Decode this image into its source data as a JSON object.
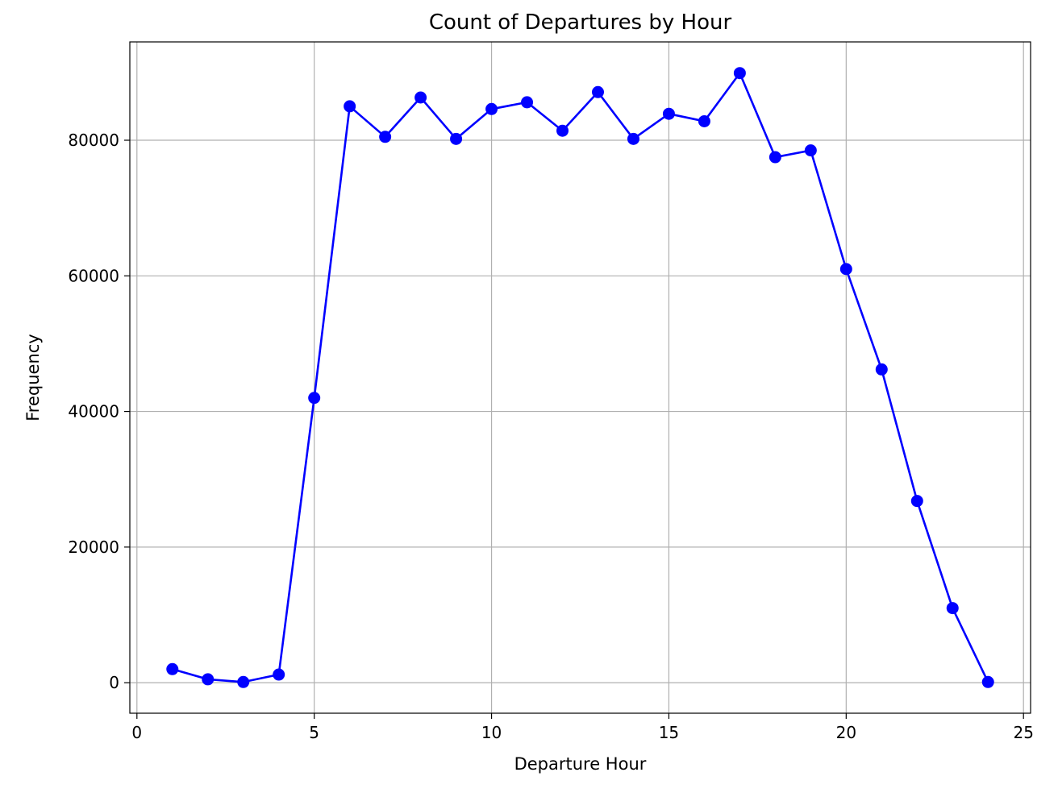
{
  "chart_data": {
    "type": "line",
    "title": "Count of Departures by Hour",
    "xlabel": "Departure Hour",
    "ylabel": "Frequency",
    "xlim": [
      -0.2,
      25.2
    ],
    "ylim": [
      -4500,
      94500
    ],
    "xticks": [
      0,
      5,
      10,
      15,
      20,
      25
    ],
    "yticks": [
      0,
      20000,
      40000,
      60000,
      80000
    ],
    "grid": true,
    "color": "#0000ff",
    "marker": "circle",
    "series": [
      {
        "x": [
          1,
          2,
          3,
          4,
          5,
          6,
          7,
          8,
          9,
          10,
          11,
          12,
          13,
          14,
          15,
          16,
          17,
          18,
          19,
          20,
          21,
          22,
          23,
          24
        ],
        "values": [
          2000,
          500,
          100,
          1200,
          42000,
          85000,
          80500,
          86300,
          80200,
          84600,
          85600,
          81400,
          87100,
          80200,
          83900,
          82800,
          89900,
          77500,
          78500,
          61000,
          46200,
          26800,
          11000,
          100
        ]
      }
    ]
  }
}
